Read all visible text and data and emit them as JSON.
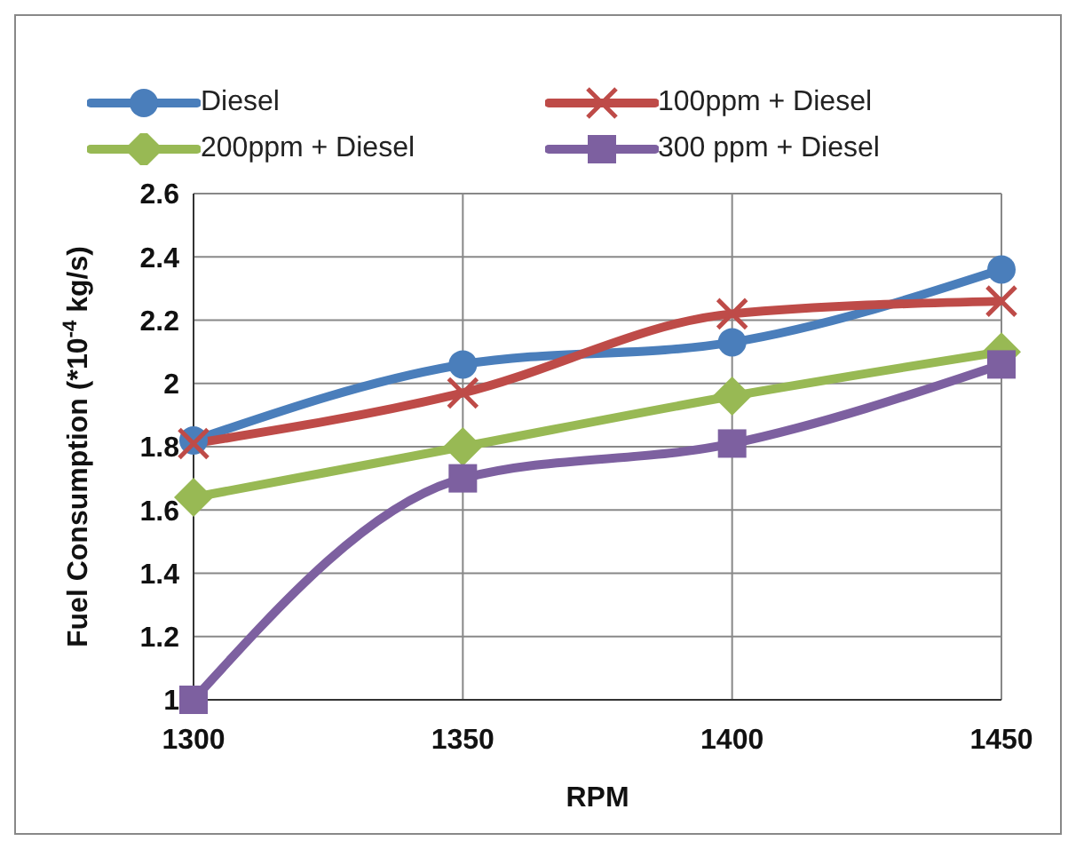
{
  "chart_data": {
    "type": "line",
    "xlabel": "RPM",
    "ylabel": "Fuel Consumption (*10$^{-4}$  kg/s)",
    "x": [
      1300,
      1350,
      1400,
      1450
    ],
    "xlim": [
      1300,
      1450
    ],
    "xticks": [
      1300,
      1350,
      1400,
      1450
    ],
    "ylim": [
      1,
      2.6
    ],
    "yticks": [
      1,
      1.2,
      1.4,
      1.6,
      1.8,
      2,
      2.2,
      2.4,
      2.6
    ],
    "grid": true,
    "legend": "top",
    "line_style": "solid",
    "series": [
      {
        "name": "Diesel",
        "color": "#4a7ebb",
        "marker": "circle",
        "values": [
          1.82,
          2.06,
          2.13,
          2.36
        ]
      },
      {
        "name": "100ppm + Diesel",
        "color": "#be4b48",
        "marker": "cross",
        "values": [
          1.81,
          1.97,
          2.22,
          2.26
        ]
      },
      {
        "name": "200ppm + Diesel",
        "color": "#98b954",
        "marker": "diamond",
        "values": [
          1.64,
          1.8,
          1.96,
          2.1
        ]
      },
      {
        "name": "300 ppm + Diesel",
        "color": "#7d60a0",
        "marker": "square",
        "values": [
          1.0,
          1.7,
          1.81,
          2.06
        ]
      }
    ]
  }
}
